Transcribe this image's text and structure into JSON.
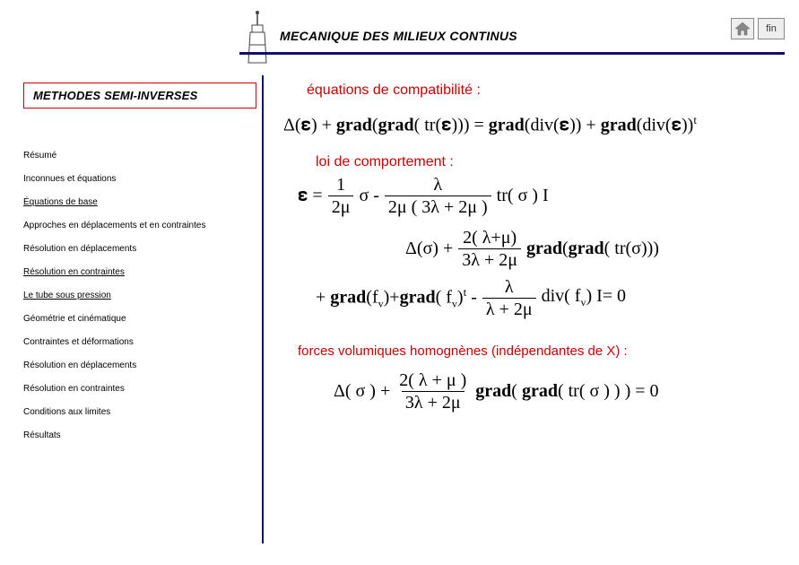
{
  "header": {
    "title": "MECANIQUE DES MILIEUX CONTINUS",
    "fin_label": "fin",
    "rule_color": "#10106a"
  },
  "method_box": {
    "label": "METHODES SEMI-INVERSES"
  },
  "nav": {
    "items": [
      {
        "label": "Résumé",
        "underline": false
      },
      {
        "label": "Inconnues et équations",
        "underline": false
      },
      {
        "label": "Équations de base",
        "underline": true
      },
      {
        "label": "Approches en déplacements et en contraintes",
        "underline": false
      },
      {
        "label": "Résolution en déplacements",
        "underline": false
      },
      {
        "label": "Résolution en contraintes",
        "underline": true
      },
      {
        "label": "Le tube sous pression",
        "underline": true
      },
      {
        "label": "Géométrie et cinématique",
        "underline": false
      },
      {
        "label": "Contraintes et déformations",
        "underline": false
      },
      {
        "label": "Résolution en déplacements",
        "underline": false
      },
      {
        "label": "Résolution en contraintes",
        "underline": false
      },
      {
        "label": "Conditions aux limites",
        "underline": false
      },
      {
        "label": "Résultats",
        "underline": false
      }
    ]
  },
  "content": {
    "compat_title": "équations de compatibilité :",
    "eq1": {
      "lhs_delta": "Δ(𝛆) + ",
      "lhs_grad": "grad",
      "lhs_mid1": "(",
      "lhs_mid2": "( tr(𝛆))) = ",
      "rhs_grad1": "grad",
      "rhs_mid3": "(div(𝛆)) + ",
      "rhs_grad2": "grad",
      "rhs_tail": "(div(𝛆))",
      "sup_t": "t"
    },
    "law_title": "loi de comportement :",
    "eq2": {
      "lhs": "𝛆 =",
      "frac1_num": "1",
      "frac1_den": "2μ",
      "sigma": "σ -",
      "frac2_num": "λ",
      "frac2_den": "2μ ( 3λ + 2μ )",
      "tail": "tr( σ ) I"
    },
    "eq3": {
      "lhs": "Δ(σ) +",
      "frac_num": "2( λ+μ)",
      "frac_den": "3λ + 2μ",
      "grad": "grad",
      "tail_open": "(",
      "tail_inner": "( tr(σ)))"
    },
    "eq4": {
      "p1": "+ ",
      "grad1": "grad",
      "p2": "(f",
      "sub_v": "v",
      "p3": ")+",
      "grad2": "grad",
      "p4": "( f",
      "p5": ")",
      "sup_t": "t",
      "p6": " - ",
      "frac_num": "λ",
      "frac_den": "λ + 2μ",
      "p7": "div( f",
      "p8": ") I= 0"
    },
    "forces_title": "forces volumiques homognènes (indépendantes de X) :",
    "eq5": {
      "lhs": "Δ( σ ) +",
      "frac_num": "2( λ + μ )",
      "frac_den": "3λ + 2μ",
      "grad": "grad",
      "tail": "( ",
      "tail2": "( tr( σ ) ) ) = 0"
    }
  },
  "colors": {
    "accent_red": "#c80000",
    "accent_blue": "#10106a"
  }
}
